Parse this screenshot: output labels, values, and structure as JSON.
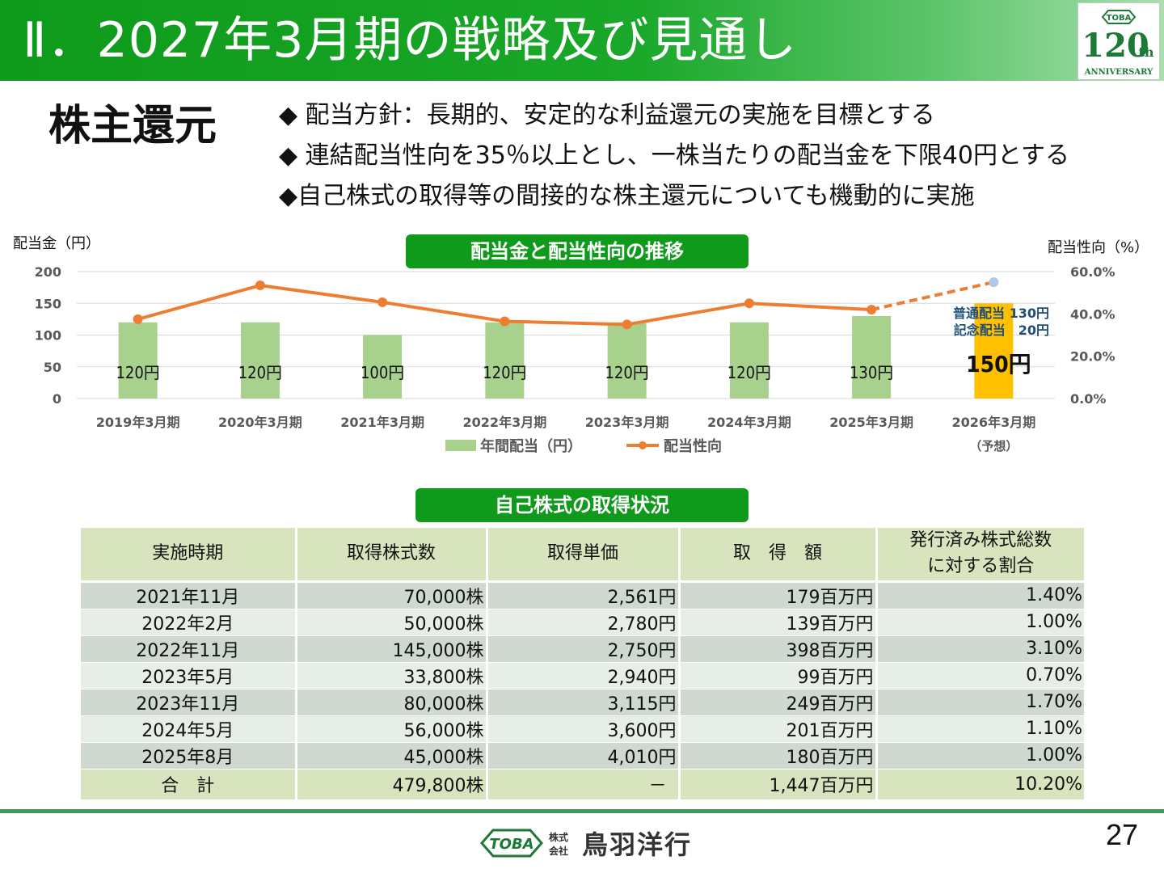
{
  "header": {
    "title": "Ⅱ．2027年3月期の戦略及び見通し",
    "badge": {
      "brand": "TOBA",
      "number": "120",
      "suffix": "th",
      "caption": "ANNIVERSARY"
    }
  },
  "section_title": "株主還元",
  "bullets": [
    "◆ 配当方針：長期的、安定的な利益還元の実施を目標とする",
    "◆ 連結配当性向を35％以上とし、一株当たりの配当金を下限40円とする",
    "◆自己株式の取得等の間接的な株主還元についても機動的に実施"
  ],
  "chart_section": {
    "left_unit": "配当金（円）",
    "right_unit": "配当性向（%）",
    "title": "配当金と配当性向の推移",
    "forecast_note": "（予想）",
    "forecast_breakdown": [
      "普通配当 130円",
      "記念配当　20円"
    ]
  },
  "chart_data": {
    "type": "bar",
    "categories": [
      "2019年3月期",
      "2020年3月期",
      "2021年3月期",
      "2022年3月期",
      "2023年3月期",
      "2024年3月期",
      "2025年3月期",
      "2026年3月期"
    ],
    "series": [
      {
        "name": "年間配当（円）",
        "type": "bar",
        "axis": "left",
        "values": [
          120,
          120,
          100,
          120,
          120,
          120,
          130,
          150
        ],
        "labels": [
          "120円",
          "120円",
          "100円",
          "120円",
          "120円",
          "120円",
          "130円",
          "150円"
        ]
      },
      {
        "name": "配当性向",
        "type": "line",
        "axis": "right",
        "values": [
          37.5,
          53.5,
          45.5,
          36.5,
          35.0,
          45.0,
          42.0,
          55.0
        ]
      }
    ],
    "left_axis": {
      "ticks": [
        "200",
        "150",
        "100",
        "50",
        "0"
      ],
      "ylim": [
        0,
        200
      ]
    },
    "right_axis": {
      "ticks": [
        "60.0%",
        "40.0%",
        "20.0%",
        "0.0%"
      ],
      "ylim": [
        0,
        60
      ]
    },
    "colors": {
      "bar": "#a9d18e",
      "bar_forecast": "#ffc000",
      "line": "#ed7d31",
      "line_forecast_point": "#b4c7e7"
    },
    "legend": "bottom"
  },
  "acquisition": {
    "title": "自己株式の取得状況",
    "headers": [
      "実施時期",
      "取得株式数",
      "取得単価",
      "取　得　額",
      "発行済み株式総数\nに対する割合"
    ],
    "rows": [
      [
        "2021年11月",
        "70,000株",
        "2,561円",
        "179百万円",
        "1.40%"
      ],
      [
        "2022年2月",
        "50,000株",
        "2,780円",
        "139百万円",
        "1.00%"
      ],
      [
        "2022年11月",
        "145,000株",
        "2,750円",
        "398百万円",
        "3.10%"
      ],
      [
        "2023年5月",
        "33,800株",
        "2,940円",
        "99百万円",
        "0.70%"
      ],
      [
        "2023年11月",
        "80,000株",
        "3,115円",
        "249百万円",
        "1.70%"
      ],
      [
        "2024年5月",
        "56,000株",
        "3,600円",
        "201百万円",
        "1.10%"
      ],
      [
        "2025年8月",
        "45,000株",
        "4,010円",
        "180百万円",
        "1.00%"
      ]
    ],
    "total": [
      "合　計",
      "479,800株",
      "－",
      "1,447百万円",
      "10.20%"
    ]
  },
  "footer": {
    "logo_brand": "TOBA",
    "company_prefix": [
      "株式",
      "会社"
    ],
    "company_name": "鳥羽洋行",
    "page_number": "27"
  }
}
